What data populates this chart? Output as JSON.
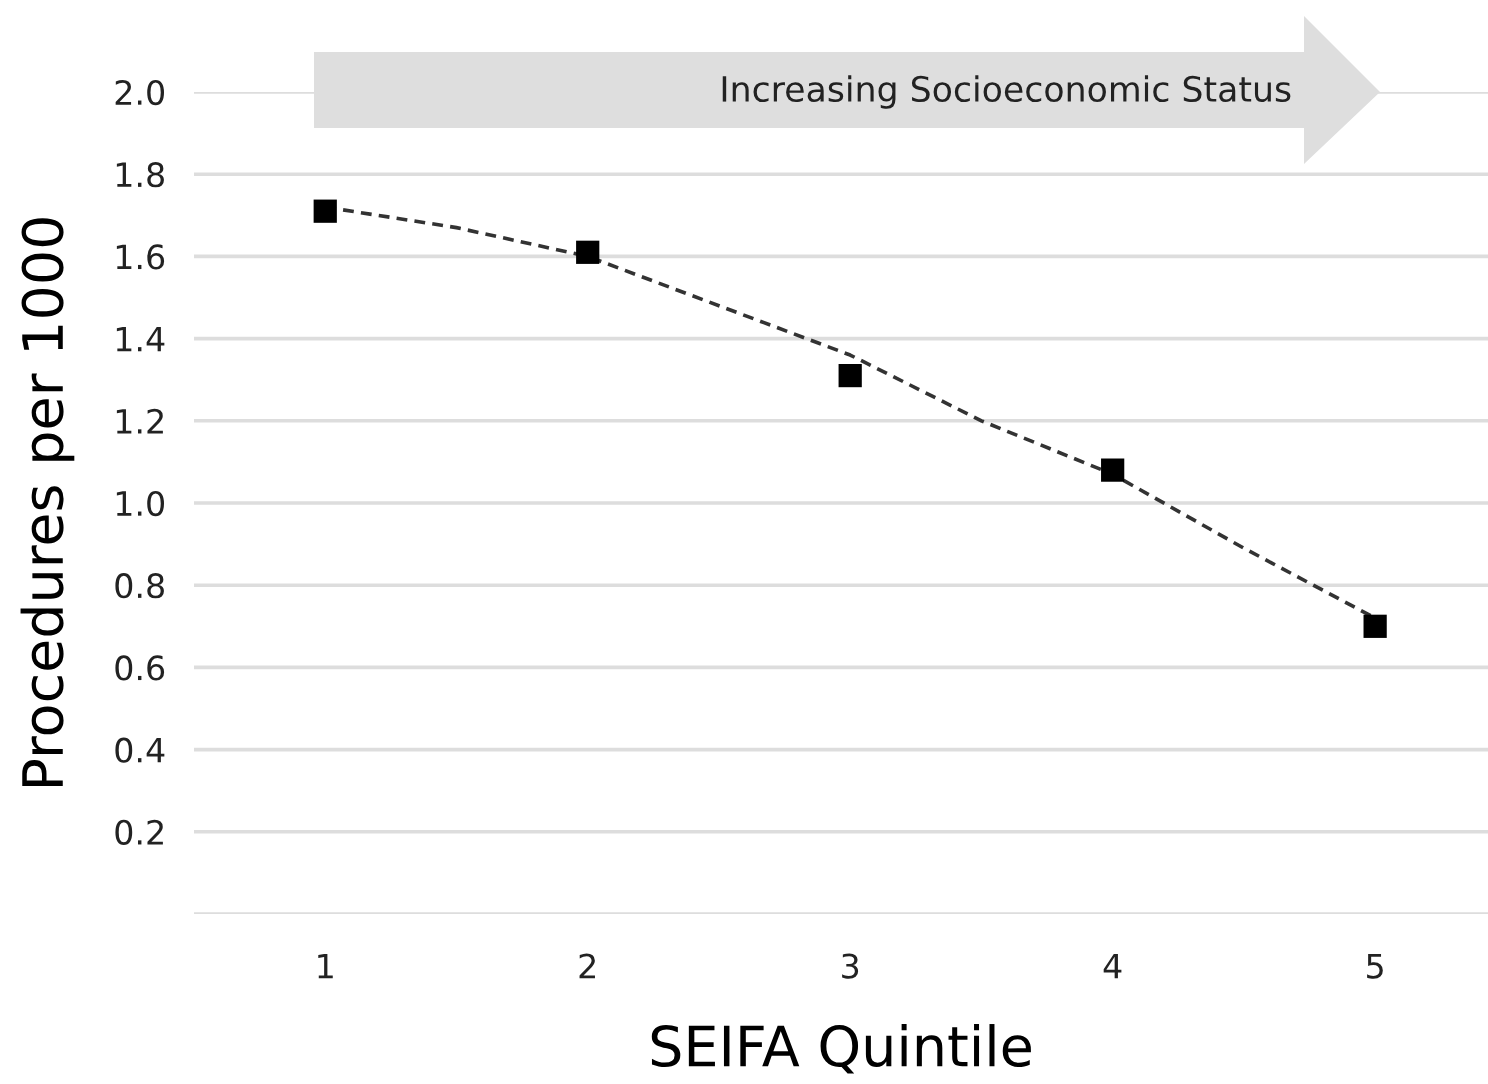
{
  "chart_data": {
    "type": "scatter",
    "xlabel": "SEIFA Quintile",
    "ylabel": "Procedures per 1000",
    "x": [
      1,
      2,
      3,
      4,
      5
    ],
    "series": [
      {
        "color": "#000000",
        "marker": "square",
        "values": [
          1.71,
          1.61,
          1.31,
          1.08,
          0.7
        ]
      },
      {
        "type": "line",
        "color": "#333333",
        "line_style": "dashed",
        "x": [
          1,
          1.5,
          2,
          2.5,
          3,
          3.5,
          4,
          4.5,
          5
        ],
        "values": [
          1.72,
          1.67,
          1.6,
          1.48,
          1.36,
          1.2,
          1.07,
          0.89,
          0.72
        ]
      }
    ],
    "xlim": [
      0.5,
      5.43
    ],
    "ylim": [
      0,
      2.0
    ],
    "xticks": [
      1,
      2,
      3,
      4,
      5
    ],
    "yticks": [
      {
        "value": 0,
        "label": null
      },
      0.2,
      0.4,
      0.6,
      0.8,
      {
        "value": 1,
        "label": "1.0"
      },
      1.2,
      1.4,
      1.6,
      1.8,
      {
        "value": 2,
        "label": "2.0"
      }
    ],
    "grid": "y",
    "legend": false,
    "annotations": [
      "Increasing Socioeconomic Status"
    ]
  }
}
